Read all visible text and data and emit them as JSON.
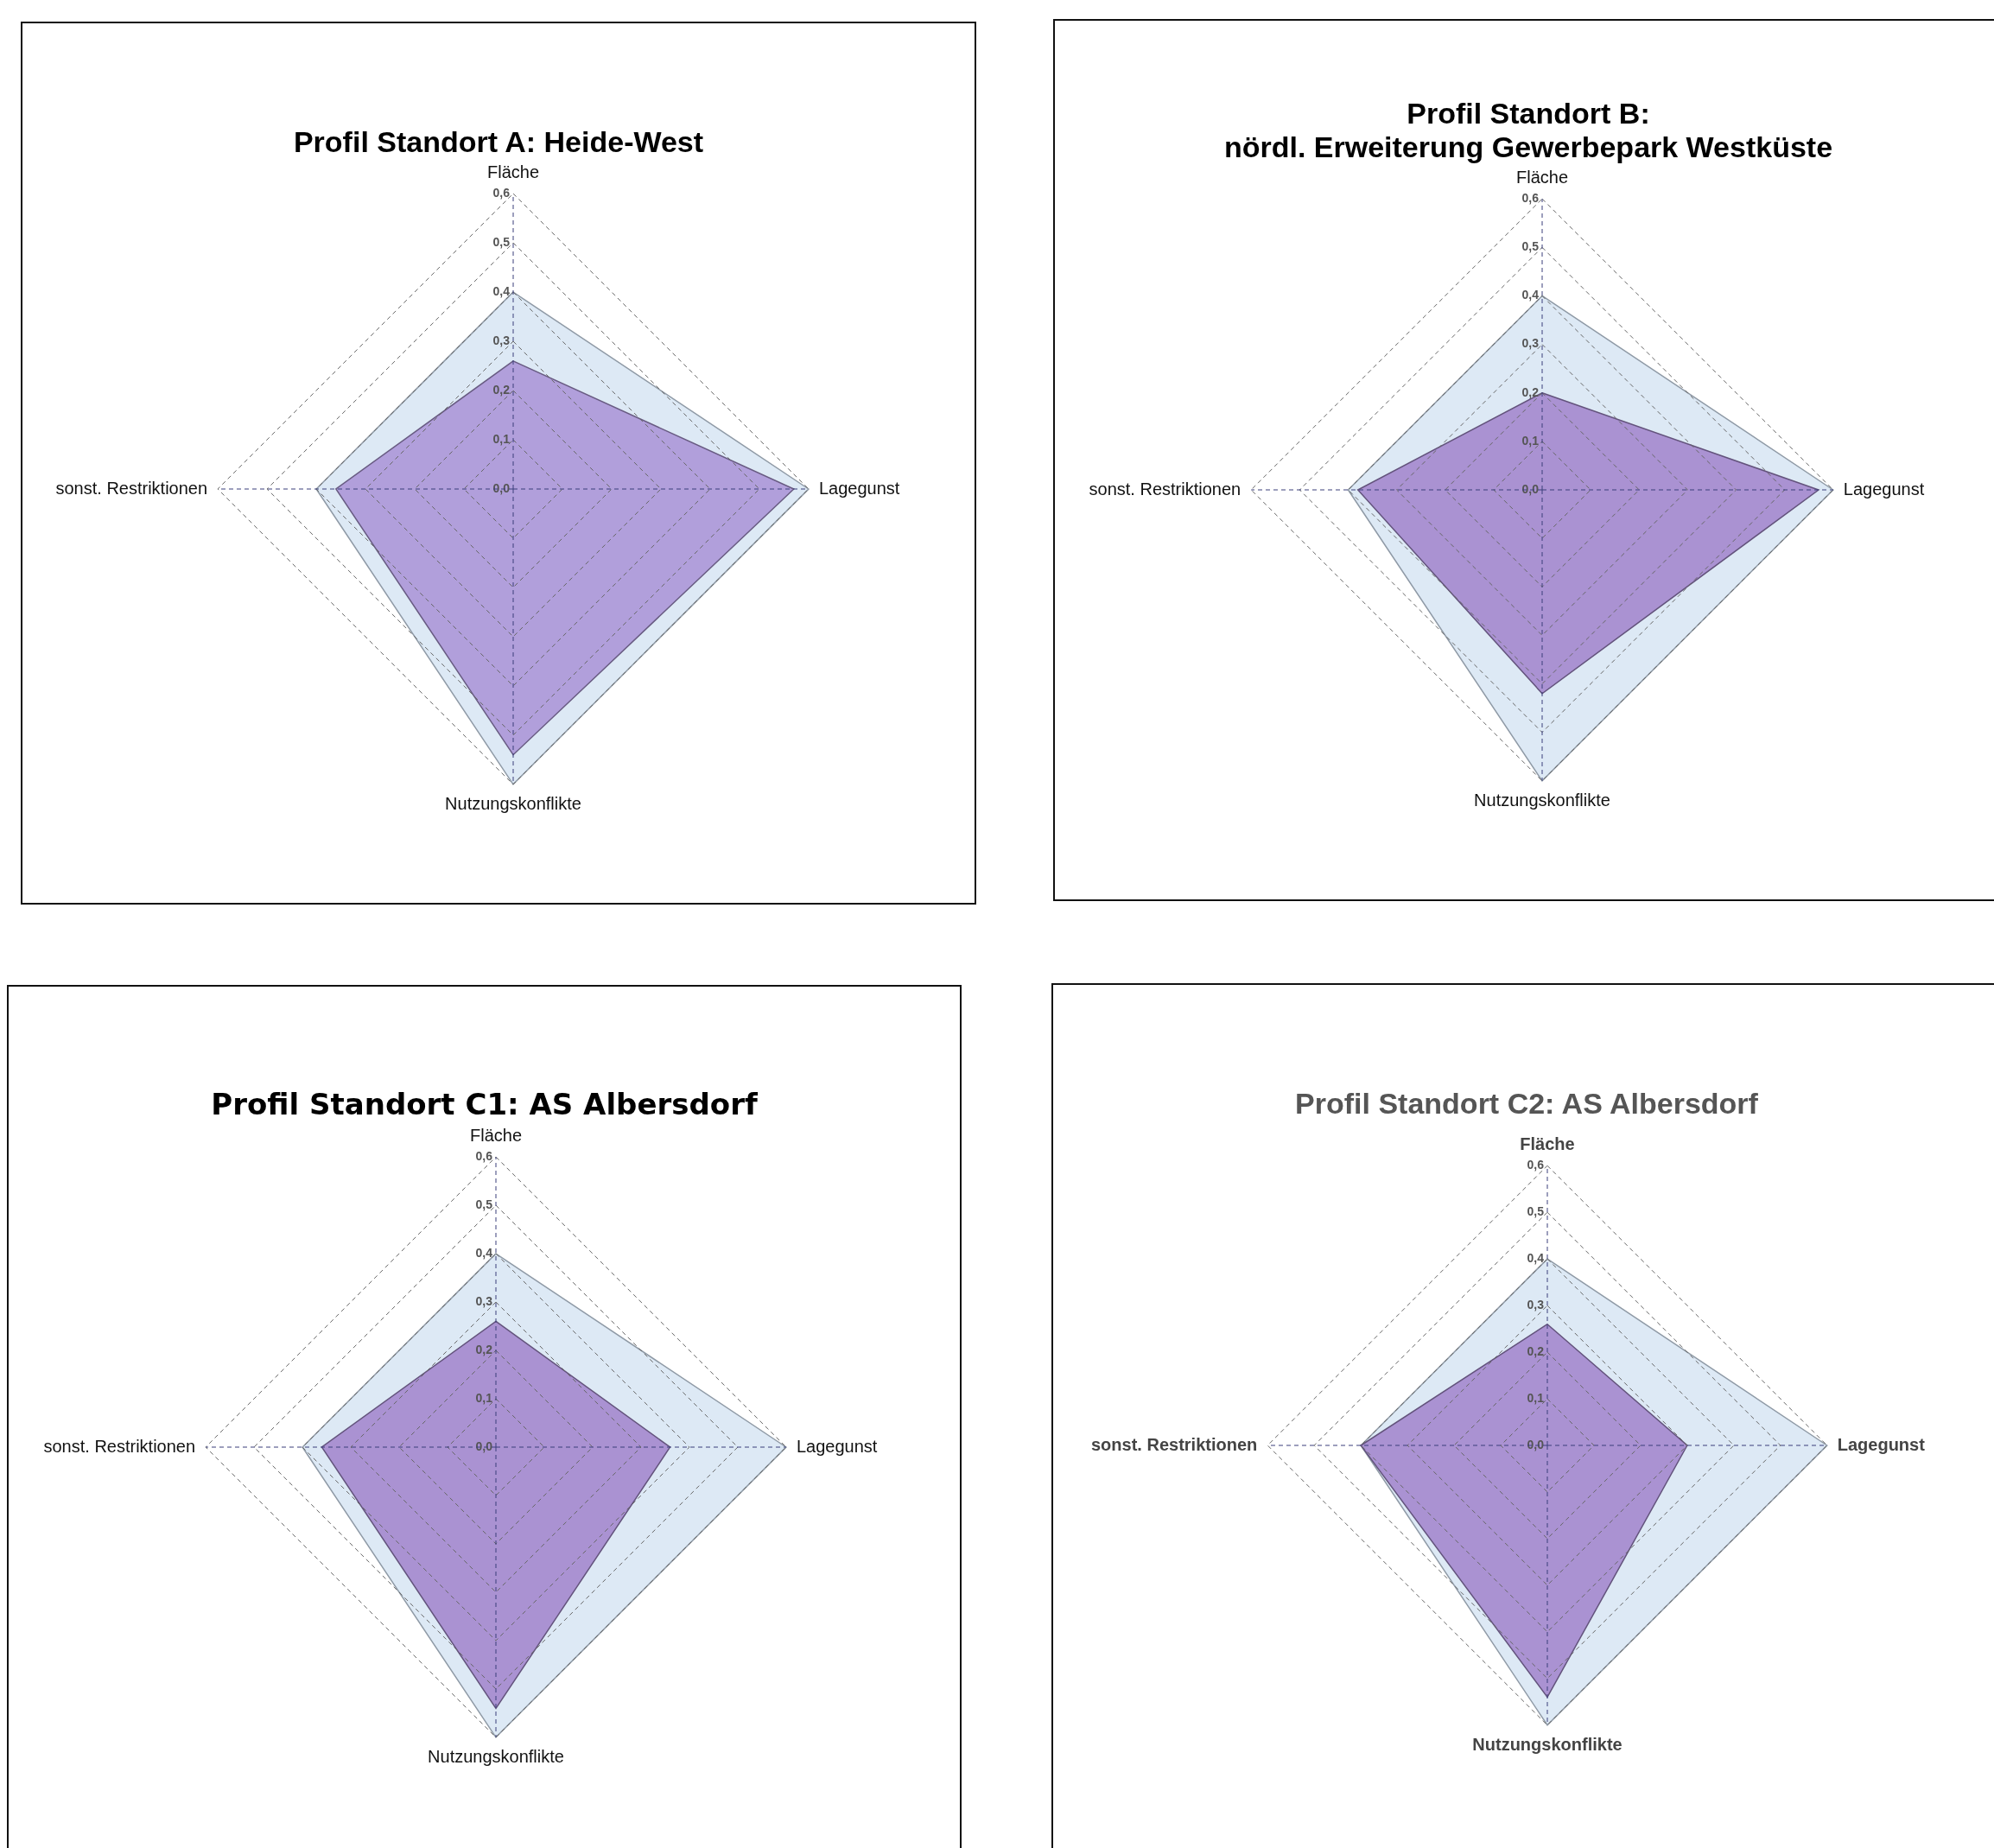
{
  "chart_data": [
    {
      "type": "radar",
      "title": "Profil Standort A: Heide-West",
      "categories": [
        "Fläche",
        "Lagegunst",
        "Nutzungskonflikte",
        "sonst. Restriktionen"
      ],
      "ylim": [
        0,
        0.6
      ],
      "yticks": [
        {
          "value": 0,
          "label": "0,0"
        },
        {
          "value": 0.1,
          "label": "0,1"
        },
        {
          "value": 0.2,
          "label": "0,2"
        },
        {
          "value": 0.3,
          "label": "0,3"
        },
        {
          "value": 0.4,
          "label": "0,4"
        },
        {
          "value": 0.5,
          "label": "0,5"
        },
        {
          "value": 0.6,
          "label": "0,6"
        }
      ],
      "grid": true,
      "legend": false,
      "line_style": "dashed",
      "marker": "none",
      "series": [
        {
          "color": "#dde9f5",
          "values": [
            0.4,
            0.6,
            0.6,
            0.4
          ]
        },
        {
          "color": "#ad98d8",
          "values": [
            0.26,
            0.57,
            0.54,
            0.36
          ]
        }
      ]
    },
    {
      "type": "radar",
      "title": "Profil Standort B:\nnördl. Erweiterung Gewerbepark Westküste",
      "categories": [
        "Fläche",
        "Lagegunst",
        "Nutzungskonflikte",
        "sonst. Restriktionen"
      ],
      "ylim": [
        0,
        0.6
      ],
      "yticks": [
        {
          "value": 0,
          "label": "0,0"
        },
        {
          "value": 0.1,
          "label": "0,1"
        },
        {
          "value": 0.2,
          "label": "0,2"
        },
        {
          "value": 0.3,
          "label": "0,3"
        },
        {
          "value": 0.4,
          "label": "0,4"
        },
        {
          "value": 0.5,
          "label": "0,5"
        },
        {
          "value": 0.6,
          "label": "0,6"
        }
      ],
      "grid": true,
      "legend": false,
      "line_style": "dashed",
      "marker": "none",
      "series": [
        {
          "color": "#dde9f5",
          "values": [
            0.4,
            0.6,
            0.6,
            0.4
          ]
        },
        {
          "color": "#a58ace",
          "values": [
            0.2,
            0.57,
            0.42,
            0.38
          ]
        }
      ]
    },
    {
      "type": "radar",
      "title": "Profil Standort C1: AS Albersdorf",
      "categories": [
        "Fläche",
        "Lagegunst",
        "Nutzungskonflikte",
        "sonst. Restriktionen"
      ],
      "ylim": [
        0,
        0.6
      ],
      "yticks": [
        {
          "value": 0,
          "label": "0,0"
        },
        {
          "value": 0.1,
          "label": "0,1"
        },
        {
          "value": 0.2,
          "label": "0,2"
        },
        {
          "value": 0.3,
          "label": "0,3"
        },
        {
          "value": 0.4,
          "label": "0,4"
        },
        {
          "value": 0.5,
          "label": "0,5"
        },
        {
          "value": 0.6,
          "label": "0,6"
        }
      ],
      "grid": true,
      "legend": false,
      "line_style": "dashed",
      "marker": "none",
      "series": [
        {
          "color": "#dde9f5",
          "values": [
            0.4,
            0.6,
            0.6,
            0.4
          ]
        },
        {
          "color": "#a58ace",
          "values": [
            0.26,
            0.36,
            0.54,
            0.36
          ]
        }
      ]
    },
    {
      "type": "radar",
      "title": "Profil Standort C2: AS Albersdorf",
      "categories": [
        "Fläche",
        "Lagegunst",
        "Nutzungskonflikte",
        "sonst. Restriktionen"
      ],
      "ylim": [
        0,
        0.6
      ],
      "yticks": [
        {
          "value": 0,
          "label": "0,0"
        },
        {
          "value": 0.1,
          "label": "0,1"
        },
        {
          "value": 0.2,
          "label": "0,2"
        },
        {
          "value": 0.3,
          "label": "0,3"
        },
        {
          "value": 0.4,
          "label": "0,4"
        },
        {
          "value": 0.5,
          "label": "0,5"
        },
        {
          "value": 0.6,
          "label": "0,6"
        }
      ],
      "grid": true,
      "legend": false,
      "line_style": "dashed",
      "marker": "none",
      "series": [
        {
          "color": "#dde9f5",
          "values": [
            0.4,
            0.6,
            0.6,
            0.4
          ]
        },
        {
          "color": "#a58ace",
          "values": [
            0.26,
            0.3,
            0.54,
            0.4
          ]
        }
      ]
    }
  ]
}
